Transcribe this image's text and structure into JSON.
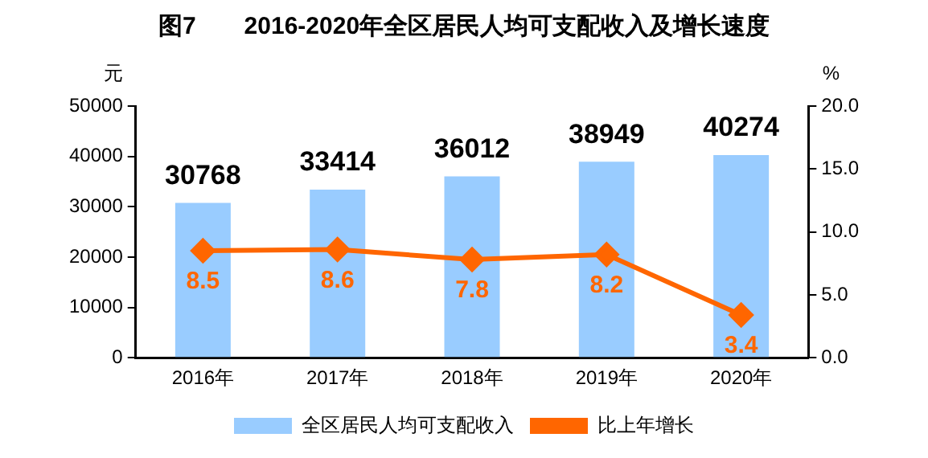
{
  "chart_data": {
    "type": "bar",
    "title": "图7　　2016-2020年全区居民人均可支配收入及增长速度",
    "ylabel": "元",
    "y2label": "%",
    "categories": [
      "2016年",
      "2017年",
      "2018年",
      "2019年",
      "2020年"
    ],
    "series": [
      {
        "name": "全区居民人均可支配收入",
        "color": "#99ccff",
        "values": [
          30768,
          33414,
          36012,
          38949,
          40274
        ]
      },
      {
        "name": "比上年增长",
        "type": "line",
        "axis": "y2",
        "color": "#ff6600",
        "marker": "diamond",
        "values": [
          8.5,
          8.6,
          7.8,
          8.2,
          3.4
        ]
      }
    ],
    "ylim": [
      0,
      50000
    ],
    "yticks": [
      0,
      10000,
      20000,
      30000,
      40000,
      50000
    ],
    "y2lim": [
      0,
      20
    ],
    "y2ticks": [
      {
        "value": 0,
        "label": "0.0"
      },
      {
        "value": 5,
        "label": "5.0"
      },
      {
        "value": 10,
        "label": "10.0"
      },
      {
        "value": 15,
        "label": "15.0"
      },
      {
        "value": 20,
        "label": "20.0"
      }
    ],
    "data_labels": true,
    "grid": false,
    "legend": "bottom"
  }
}
